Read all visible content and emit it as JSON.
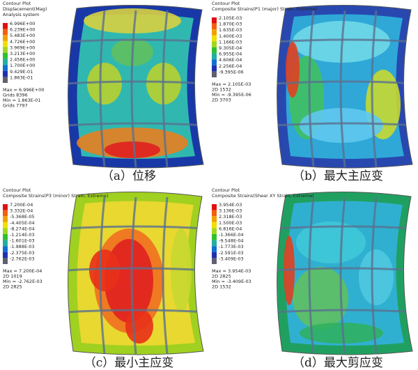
{
  "panels": [
    {
      "header": [
        "Contour Plot",
        "Displacement(Mag)",
        "Analysis system"
      ],
      "legend": [
        "6.996E+00",
        "6.239E+00",
        "5.483E+00",
        "4.726E+00",
        "3.969E+00",
        "3.213E+00",
        "2.456E+00",
        "1.700E+00",
        "9.429E-01",
        "1.863E-01"
      ],
      "stats": [
        "Max = 6.996E+00",
        "Grids 8396",
        "Min = 1.863E-01",
        "Grids 7797"
      ],
      "caption": "（a）位移"
    },
    {
      "header": [
        "Contour Plot",
        "Composite Strains(P1 (major) Strain, Extreme)"
      ],
      "legend": [
        "2.105E-03",
        "1.870E-03",
        "1.635E-03",
        "1.400E-03",
        "1.166E-03",
        "9.305E-04",
        "6.955E-04",
        "4.606E-04",
        "2.256E-04",
        "-9.395E-06"
      ],
      "stats": [
        "Max = 2.105E-03",
        "2D 1532",
        "Min = -9.395E-06",
        "2D 3703"
      ],
      "caption": "（b）最大主应变"
    },
    {
      "header": [
        "Contour Plot",
        "Composite Strains(P3 (minor) Strain, Extreme)"
      ],
      "legend": [
        "7.200E-04",
        "3.332E-04",
        "-5.368E-05",
        "-4.405E-04",
        "-8.274E-04",
        "-1.214E-03",
        "-1.601E-03",
        "-1.988E-03",
        "-2.375E-03",
        "-2.762E-03"
      ],
      "stats": [
        "Max = 7.200E-04",
        "2D 1019",
        "Min = -2.762E-03",
        "2D 2825"
      ],
      "caption": "（c）最小主应变"
    },
    {
      "header": [
        "Contour Plot",
        "Composite Strains(Shear XY Strain, Extreme)"
      ],
      "legend": [
        "3.954E-03",
        "3.136E-03",
        "2.318E-03",
        "1.500E-03",
        "6.816E-04",
        "-1.366E-04",
        "-9.548E-04",
        "-1.773E-03",
        "-2.591E-03",
        "-3.409E-03"
      ],
      "stats": [
        "Max = 3.954E-03",
        "2D 2825",
        "Min = -3.409E-03",
        "2D 1532"
      ],
      "caption": "（d）最大剪应变"
    }
  ]
}
